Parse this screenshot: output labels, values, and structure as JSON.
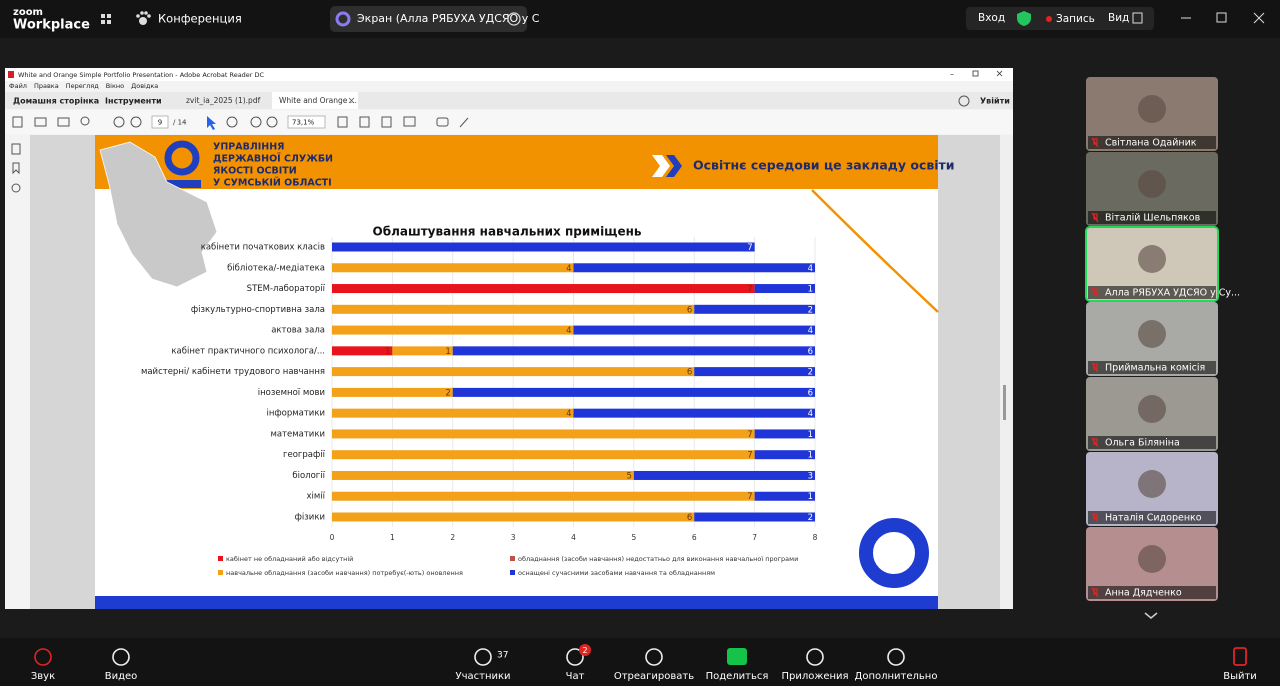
{
  "top_bar": {
    "logo_line1": "zoom",
    "logo_line2": "Workplace",
    "meeting": "Конференция",
    "share_label": "Экран (Алла РЯБУХА УДСЯО у С",
    "signin": "Вход",
    "record": "Запись",
    "view": "Вид"
  },
  "acrobat": {
    "window_title": "White and Orange Simple Portfolio Presentation - Adobe Acrobat Reader DC",
    "menu": [
      "Файл",
      "Правка",
      "Перегляд",
      "Вікно",
      "Довідка"
    ],
    "tabs": [
      "Домашня сторінка",
      "Інструменти",
      "zvit_ia_2025 (1).pdf",
      "White and Orange ..."
    ],
    "signin": "Увійти",
    "page": 9,
    "page_count": "/ 14",
    "zoom": "73,1%"
  },
  "slide": {
    "org_lines": [
      "УПРАВЛІННЯ",
      "ДЕРЖАВНОЇ СЛУЖБИ",
      "ЯКОСТІ ОСВІТИ",
      "У СУМСЬКІЙ ОБЛАСТІ"
    ],
    "header_title": "Освітнє середови це закладу освіти"
  },
  "chart_data": {
    "type": "bar",
    "orientation": "horizontal",
    "stacked": true,
    "grid": true,
    "title": "Облаштування навчальних приміщень",
    "categories": [
      "кабінети початкових класів",
      "бібліотека/-медіатека",
      "STEM-лабораторії",
      "фізкультурно-спортивна зала",
      "актова зала",
      "кабінет практичного психолога/...",
      "майстерні/ кабінети трудового навчання",
      "іноземної мови",
      "інформатики",
      "математики",
      "географії",
      "біології",
      "хімії",
      "фізики"
    ],
    "series": [
      {
        "name": "кабінет не обладнаний або відсутній",
        "color": "#e8131b",
        "values": [
          0,
          0,
          7,
          0,
          0,
          1,
          0,
          0,
          0,
          0,
          0,
          0,
          0,
          0
        ]
      },
      {
        "name": "обладнання (засоби навчання) недостатньо для виконання навчальної програми",
        "color": "#c0504d",
        "values": [
          0,
          0,
          0,
          0,
          0,
          0,
          0,
          0,
          0,
          0,
          0,
          0,
          0,
          0
        ]
      },
      {
        "name": "навчальне обладнання (засоби навчання) потребує(-ють) оновлення",
        "color": "#f4a11a",
        "values": [
          0,
          4,
          0,
          6,
          4,
          1,
          6,
          2,
          4,
          7,
          7,
          5,
          7,
          6
        ]
      },
      {
        "name": "оснащені сучасними засобами навчання та обладнанням",
        "color": "#1f35d8",
        "values": [
          7,
          4,
          1,
          2,
          4,
          6,
          2,
          6,
          4,
          1,
          1,
          3,
          1,
          2
        ]
      }
    ],
    "xlim": [
      0,
      8
    ],
    "xticks": [
      0,
      1,
      2,
      3,
      4,
      5,
      6,
      7,
      8
    ]
  },
  "participants": [
    "Світлана Одайник",
    "Віталій Шельпяков",
    "Алла РЯБУХА УДСЯО у Су...",
    "Приймальна комісія",
    "Ольга Біляніна",
    "Наталія Сидоренко",
    "Анна Дядченко"
  ],
  "toolbar": {
    "items": [
      "Звук",
      "Видео",
      "Участники",
      "Чат",
      "Отреагировать",
      "Поделиться",
      "Приложения",
      "Дополнительно",
      "Выйти"
    ],
    "participants_count": 37,
    "chat_badge": 2
  }
}
